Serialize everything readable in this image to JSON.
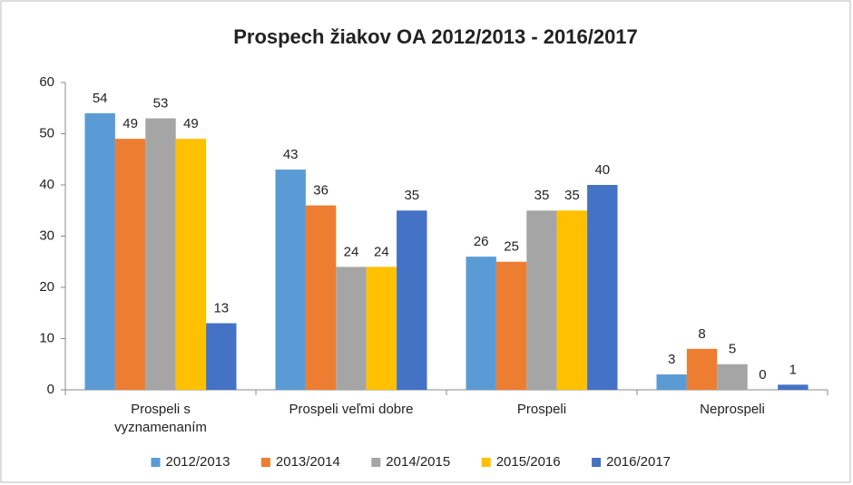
{
  "chart_data": {
    "type": "bar",
    "title": "Prospech žiakov OA 2012/2013 - 2016/2017",
    "categories": [
      "Prospeli s\nvyznamenaním",
      "Prospeli veľmi dobre",
      "Prospeli",
      "Neprospeli"
    ],
    "series": [
      {
        "name": "2012/2013",
        "color": "#5b9bd5",
        "values": [
          54,
          43,
          26,
          3
        ]
      },
      {
        "name": "2013/2014",
        "color": "#ed7d31",
        "values": [
          49,
          36,
          25,
          8
        ]
      },
      {
        "name": "2014/2015",
        "color": "#a5a5a5",
        "values": [
          53,
          24,
          35,
          5
        ]
      },
      {
        "name": "2015/2016",
        "color": "#ffc000",
        "values": [
          49,
          24,
          35,
          0
        ]
      },
      {
        "name": "2016/2017",
        "color": "#4472c4",
        "values": [
          13,
          35,
          40,
          1
        ]
      }
    ],
    "ylim": [
      0,
      60
    ],
    "yticks": [
      0,
      10,
      20,
      30,
      40,
      50,
      60
    ],
    "grid": false,
    "legend": "bottom"
  }
}
